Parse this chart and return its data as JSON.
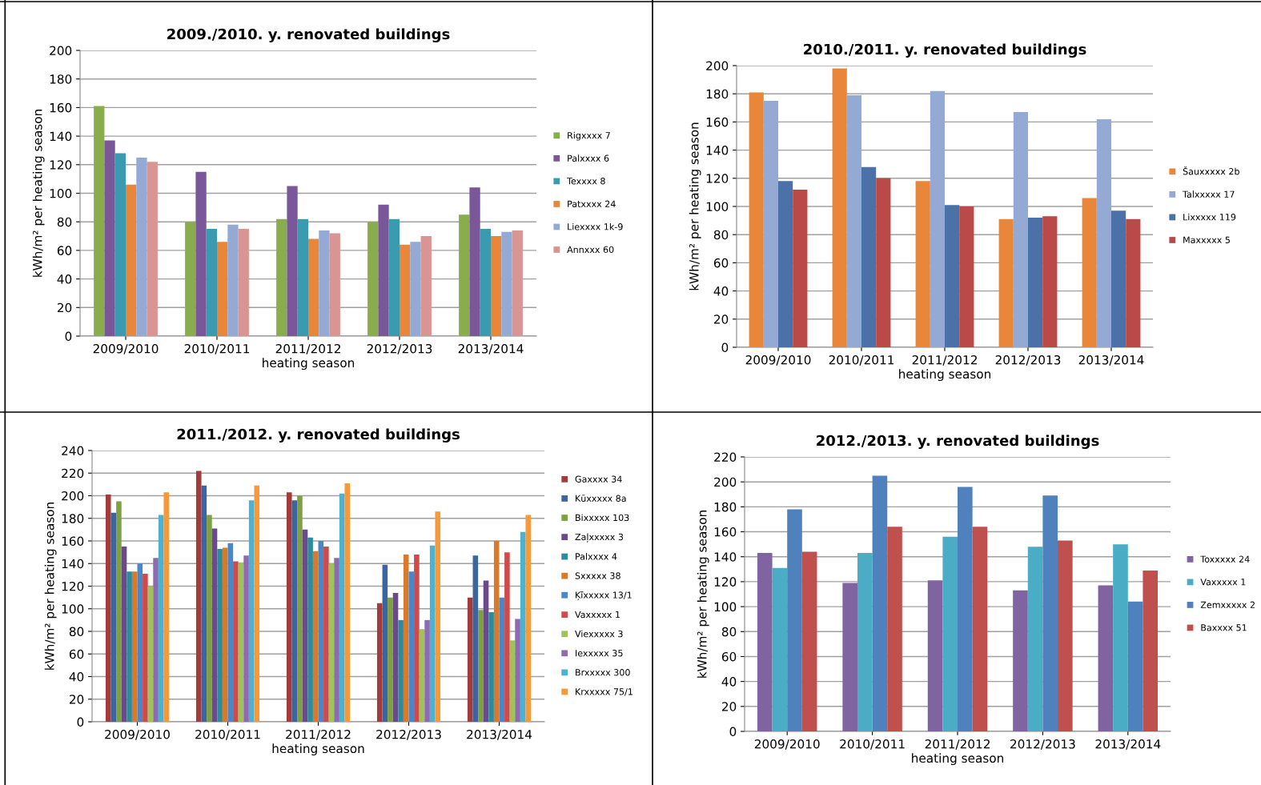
{
  "chart_data": [
    {
      "type": "bar",
      "title": "2009./2010. y. renovated buildings",
      "xlabel": "heating season",
      "ylabel": "kWh/m² per heating season",
      "categories": [
        "2009/2010",
        "2010/2011",
        "2011/2012",
        "2012/2013",
        "2013/2014"
      ],
      "ylim": [
        0,
        200
      ],
      "yticks": [
        0,
        20,
        40,
        60,
        80,
        100,
        120,
        140,
        160,
        180,
        200
      ],
      "grid": "y",
      "legend": "right",
      "series": [
        {
          "name": "Rigxxxx 7",
          "color": "#8aad4b",
          "values": [
            161,
            80,
            82,
            80,
            85
          ]
        },
        {
          "name": "Palxxxx 6",
          "color": "#7a5798",
          "values": [
            137,
            115,
            105,
            92,
            104
          ]
        },
        {
          "name": "Texxxx 8",
          "color": "#3a9bb0",
          "values": [
            128,
            75,
            82,
            82,
            75
          ]
        },
        {
          "name": "Patxxxx 24",
          "color": "#e8873a",
          "values": [
            106,
            66,
            68,
            64,
            70
          ]
        },
        {
          "name": "Liexxxx 1k-9",
          "color": "#94aad4",
          "values": [
            125,
            78,
            74,
            66,
            73
          ]
        },
        {
          "name": "Annxxx 60",
          "color": "#d99594",
          "values": [
            122,
            75,
            72,
            70,
            74
          ]
        }
      ]
    },
    {
      "type": "bar",
      "title": "2010./2011. y. renovated buildings",
      "xlabel": "heating season",
      "ylabel": "kWh/m² per heating season",
      "categories": [
        "2009/2010",
        "2010/2011",
        "2011/2012",
        "2012/2013",
        "2013/2014"
      ],
      "ylim": [
        0,
        200
      ],
      "yticks": [
        0,
        20,
        40,
        60,
        80,
        100,
        120,
        140,
        160,
        180,
        200
      ],
      "grid": "y",
      "legend": "right",
      "series": [
        {
          "name": "Šauxxxxx 2b",
          "color": "#e8873a",
          "values": [
            181,
            198,
            118,
            91,
            106
          ]
        },
        {
          "name": "Talxxxxx 17",
          "color": "#94aad4",
          "values": [
            175,
            179,
            182,
            167,
            162
          ]
        },
        {
          "name": "Lixxxxx 119",
          "color": "#4a72a8",
          "values": [
            118,
            128,
            101,
            92,
            97
          ]
        },
        {
          "name": "Maxxxxx 5",
          "color": "#b94a48",
          "values": [
            112,
            120,
            100,
            93,
            91
          ]
        }
      ]
    },
    {
      "type": "bar",
      "title": "2011./2012. y. renovated buildings",
      "xlabel": "heating season",
      "ylabel": "kWh/m² per heating season",
      "categories": [
        "2009/2010",
        "2010/2011",
        "2011/2012",
        "2012/2013",
        "2013/2014"
      ],
      "ylim": [
        0,
        240
      ],
      "yticks": [
        0,
        20,
        40,
        60,
        80,
        100,
        120,
        140,
        160,
        180,
        200,
        220,
        240
      ],
      "grid": "y",
      "legend": "right",
      "series": [
        {
          "name": "Gaxxxx 34",
          "color": "#a33b3b",
          "values": [
            201,
            222,
            203,
            105,
            110
          ]
        },
        {
          "name": "Kūxxxxx 8a",
          "color": "#3c64a0",
          "values": [
            185,
            209,
            196,
            139,
            147
          ]
        },
        {
          "name": "Bixxxxx 103",
          "color": "#7ea043",
          "values": [
            195,
            183,
            200,
            110,
            99
          ]
        },
        {
          "name": "Zaļxxxxx 3",
          "color": "#6a4a8c",
          "values": [
            155,
            171,
            170,
            114,
            125
          ]
        },
        {
          "name": "Palxxxx 4",
          "color": "#2e8b9c",
          "values": [
            133,
            153,
            163,
            90,
            97
          ]
        },
        {
          "name": "Sxxxxx 38",
          "color": "#d87a2a",
          "values": [
            133,
            154,
            151,
            148,
            160
          ]
        },
        {
          "name": "Ķīxxxxx 13/1",
          "color": "#4a86c8",
          "values": [
            140,
            158,
            160,
            133,
            110
          ]
        },
        {
          "name": "Vaxxxxx 1",
          "color": "#cf4a4a",
          "values": [
            131,
            142,
            155,
            148,
            150
          ]
        },
        {
          "name": "Viexxxxx 3",
          "color": "#9dc35a",
          "values": [
            120,
            141,
            140,
            82,
            72
          ]
        },
        {
          "name": "Iexxxxx 35",
          "color": "#8e6bb0",
          "values": [
            145,
            147,
            145,
            90,
            91
          ]
        },
        {
          "name": "Brxxxxx 300",
          "color": "#4bb3cf",
          "values": [
            183,
            196,
            202,
            156,
            168
          ]
        },
        {
          "name": "Krxxxxx 75/1",
          "color": "#f7993b",
          "values": [
            203,
            209,
            211,
            186,
            183
          ]
        }
      ]
    },
    {
      "type": "bar",
      "title": "2012./2013. y. renovated buildings",
      "xlabel": "heating season",
      "ylabel": "kWh/m² per heating season",
      "categories": [
        "2009/2010",
        "2010/2011",
        "2011/2012",
        "2012/2013",
        "2013/2014"
      ],
      "ylim": [
        0,
        220
      ],
      "yticks": [
        0,
        20,
        40,
        60,
        80,
        100,
        120,
        140,
        160,
        180,
        200,
        220
      ],
      "grid": "y",
      "legend": "right",
      "series": [
        {
          "name": "Toxxxxx 24",
          "color": "#8064a2",
          "values": [
            143,
            119,
            121,
            113,
            117
          ]
        },
        {
          "name": "Vaxxxxx 1",
          "color": "#4bacc6",
          "values": [
            131,
            143,
            156,
            148,
            150
          ]
        },
        {
          "name": "Zemxxxxx 2",
          "color": "#4f81bd",
          "values": [
            178,
            205,
            196,
            189,
            104
          ]
        },
        {
          "name": "Baxxxx 51",
          "color": "#c0504d",
          "values": [
            144,
            164,
            164,
            153,
            129
          ]
        }
      ]
    }
  ]
}
